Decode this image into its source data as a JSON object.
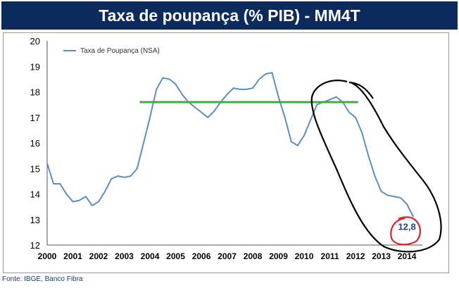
{
  "header": {
    "title": "Taxa de poupança (% PIB) - MM4T"
  },
  "footer": {
    "source": "Fonte: IBGE, Banco Fibra"
  },
  "colors": {
    "title_bg": "#0d2a5c",
    "series": "#5b8fc3",
    "trend": "#3fae3f",
    "ink_circle": "#000000",
    "red_circle": "#d62828"
  },
  "chart_data": {
    "type": "line",
    "title": "",
    "xlabel": "",
    "ylabel": "",
    "ylim": [
      12,
      20
    ],
    "xlim": [
      2000,
      2014.6
    ],
    "yticks": [
      "12",
      "13",
      "14",
      "15",
      "16",
      "17",
      "18",
      "19",
      "20"
    ],
    "xticks": [
      "2000",
      "2001",
      "2002",
      "2003",
      "2004",
      "2005",
      "2006",
      "2007",
      "2008",
      "2009",
      "2010",
      "2011",
      "2012",
      "2013",
      "2014"
    ],
    "grid": false,
    "legend": "top-left",
    "series": [
      {
        "name": "Taxa de Poupança (NSA)",
        "x": [
          2000.0,
          2000.25,
          2000.5,
          2000.75,
          2001.0,
          2001.25,
          2001.5,
          2001.75,
          2002.0,
          2002.25,
          2002.5,
          2002.75,
          2003.0,
          2003.25,
          2003.5,
          2003.75,
          2004.0,
          2004.25,
          2004.5,
          2004.75,
          2005.0,
          2005.25,
          2005.5,
          2005.75,
          2006.0,
          2006.25,
          2006.5,
          2006.75,
          2007.0,
          2007.25,
          2007.5,
          2007.75,
          2008.0,
          2008.25,
          2008.5,
          2008.75,
          2009.0,
          2009.25,
          2009.5,
          2009.75,
          2010.0,
          2010.25,
          2010.5,
          2010.75,
          2011.0,
          2011.25,
          2011.5,
          2011.75,
          2012.0,
          2012.25,
          2012.5,
          2012.75,
          2013.0,
          2013.25,
          2013.5,
          2013.75,
          2014.0,
          2014.25
        ],
        "values": [
          15.2,
          14.4,
          14.4,
          14.0,
          13.7,
          13.75,
          13.9,
          13.55,
          13.7,
          14.1,
          14.6,
          14.7,
          14.65,
          14.7,
          15.0,
          16.0,
          17.0,
          18.1,
          18.55,
          18.5,
          18.3,
          17.9,
          17.6,
          17.4,
          17.2,
          17.0,
          17.25,
          17.6,
          17.9,
          18.15,
          18.1,
          18.1,
          18.15,
          18.5,
          18.7,
          18.75,
          17.8,
          17.0,
          16.05,
          15.9,
          16.3,
          16.9,
          17.5,
          17.6,
          17.7,
          17.8,
          17.6,
          17.2,
          17.0,
          16.4,
          15.5,
          14.7,
          14.1,
          13.95,
          13.9,
          13.85,
          13.6,
          13.1
        ]
      }
    ],
    "trend_line": {
      "x": [
        2003.6,
        2012.1
      ],
      "value": 17.6
    },
    "annotations": [
      {
        "text": "12,8",
        "x": 2014.0,
        "y": 12.6
      }
    ]
  }
}
